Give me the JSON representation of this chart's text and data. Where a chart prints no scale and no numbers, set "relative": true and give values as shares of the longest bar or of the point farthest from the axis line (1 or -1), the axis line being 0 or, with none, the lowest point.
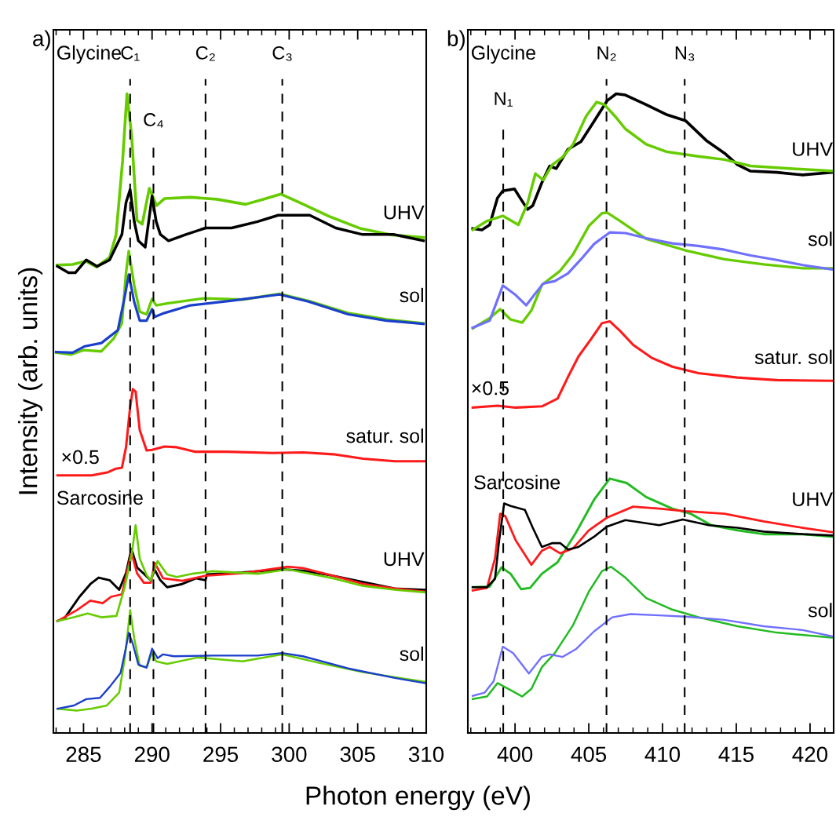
{
  "chart_data": [
    {
      "type": "line",
      "title": "a)",
      "xlabel": "Photon energy (eV)",
      "ylabel": "Intensity (arb. units)",
      "relative": true,
      "xlim": [
        282.8,
        310
      ],
      "xticks": [
        285,
        290,
        295,
        300,
        305,
        310
      ],
      "ref_lines": [
        {
          "axis": "x",
          "value": 288.4,
          "label": "C₁",
          "color": "#000000",
          "line_style": "dashed"
        },
        {
          "axis": "x",
          "value": 290.1,
          "label": "C₄",
          "color": "#000000",
          "line_style": "dashed"
        },
        {
          "axis": "x",
          "value": 293.9,
          "label": "C₂",
          "color": "#000000",
          "line_style": "dashed"
        },
        {
          "axis": "x",
          "value": 299.5,
          "label": "C₃",
          "color": "#000000",
          "line_style": "dashed"
        }
      ],
      "annotations": [
        "Glycine",
        "UHV",
        "sol",
        "satur. sol",
        "×0.5",
        "Sarcosine",
        "UHV",
        "sol"
      ],
      "series": [
        {
          "color": "#66cc00",
          "x": [
            283.07,
            284.2,
            285.17,
            285.94,
            286.9,
            287.37,
            287.85,
            288.17,
            288.51,
            288.9,
            289.28,
            289.8,
            290.33,
            290.9,
            292.81,
            294.72,
            296.82,
            298.16,
            299.4,
            300.64,
            302.94,
            305.23,
            307.52,
            309.81
          ],
          "values": [
            0.732,
            0.733,
            0.738,
            0.729,
            0.744,
            0.779,
            0.895,
            1.0,
            0.934,
            0.802,
            0.796,
            0.852,
            0.825,
            0.836,
            0.838,
            0.835,
            0.827,
            0.835,
            0.843,
            0.831,
            0.808,
            0.789,
            0.779,
            0.775
          ]
        },
        {
          "color": "#000000",
          "x": [
            283.1,
            283.9,
            284.4,
            285.2,
            286.0,
            286.9,
            287.8,
            288.1,
            288.4,
            288.7,
            289.0,
            289.5,
            290.0,
            290.3,
            290.6,
            291.2,
            292.5,
            293.9,
            295.8,
            297.7,
            299.2,
            300.2,
            301.5,
            303.4,
            305.3,
            307.6,
            309.8
          ],
          "values": [
            0.73,
            0.72,
            0.72,
            0.74,
            0.73,
            0.74,
            0.78,
            0.83,
            0.85,
            0.8,
            0.77,
            0.76,
            0.84,
            0.8,
            0.78,
            0.77,
            0.78,
            0.79,
            0.79,
            0.8,
            0.81,
            0.81,
            0.81,
            0.79,
            0.78,
            0.78,
            0.77
          ]
        },
        {
          "color": "#66cc00",
          "x": [
            283.0,
            284.1,
            285.0,
            286.3,
            287.2,
            287.8,
            288.1,
            288.3,
            288.7,
            289.1,
            289.6,
            290.0,
            290.3,
            291.1,
            293.8,
            296.6,
            299.3,
            301.4,
            304.3,
            307.1,
            309.8
          ],
          "values": [
            0.595,
            0.592,
            0.599,
            0.597,
            0.617,
            0.641,
            0.72,
            0.754,
            0.7,
            0.659,
            0.655,
            0.679,
            0.669,
            0.672,
            0.68,
            0.678,
            0.687,
            0.676,
            0.657,
            0.647,
            0.641
          ]
        },
        {
          "color": "#1a3fcc",
          "x": [
            283.0,
            284.2,
            285.1,
            286.3,
            287.5,
            288.0,
            288.3,
            288.7,
            289.1,
            289.6,
            290.0,
            290.2,
            290.9,
            292.8,
            295.7,
            299.3,
            301.4,
            304.3,
            307.1,
            309.8
          ],
          "values": [
            0.596,
            0.595,
            0.605,
            0.61,
            0.63,
            0.682,
            0.717,
            0.674,
            0.645,
            0.645,
            0.663,
            0.651,
            0.657,
            0.669,
            0.676,
            0.686,
            0.675,
            0.655,
            0.645,
            0.64
          ]
        },
        {
          "color": "#ff1a1a",
          "x": [
            283.1,
            285.6,
            286.8,
            287.3,
            287.8,
            288.1,
            288.4,
            288.6,
            288.8,
            289.1,
            289.6,
            290.0,
            290.9,
            291.8,
            293.1,
            295.5,
            298.8,
            301.0,
            303.2,
            305.4,
            307.7,
            309.9
          ],
          "values": [
            0.403,
            0.403,
            0.408,
            0.413,
            0.415,
            0.447,
            0.51,
            0.538,
            0.534,
            0.474,
            0.442,
            0.443,
            0.448,
            0.447,
            0.44,
            0.44,
            0.438,
            0.439,
            0.436,
            0.429,
            0.425,
            0.425
          ]
        },
        {
          "color": "#000000",
          "x": [
            283.1,
            283.6,
            284.7,
            285.5,
            286.1,
            286.9,
            287.6,
            288.1,
            288.5,
            288.9,
            289.3,
            289.9,
            290.2,
            290.6,
            291.1,
            292.2,
            293.2,
            293.9,
            294.0,
            296.6,
            299.5,
            301.0,
            303.2,
            305.4,
            307.7,
            309.9
          ],
          "values": [
            0.175,
            0.179,
            0.213,
            0.233,
            0.243,
            0.239,
            0.224,
            0.25,
            0.288,
            0.259,
            0.251,
            0.239,
            0.255,
            0.239,
            0.228,
            0.233,
            0.242,
            0.239,
            0.248,
            0.251,
            0.256,
            0.254,
            0.246,
            0.236,
            0.226,
            0.224
          ]
        },
        {
          "color": "#ff1a1a",
          "x": [
            283.1,
            284.5,
            285.5,
            286.4,
            287.0,
            287.8,
            288.3,
            288.5,
            288.9,
            289.4,
            289.9,
            290.2,
            290.8,
            292.2,
            293.9,
            296.6,
            299.9,
            301.0,
            303.2,
            305.4,
            307.7,
            309.9
          ],
          "values": [
            0.175,
            0.192,
            0.207,
            0.203,
            0.213,
            0.217,
            0.264,
            0.282,
            0.25,
            0.235,
            0.235,
            0.266,
            0.242,
            0.238,
            0.246,
            0.25,
            0.26,
            0.258,
            0.246,
            0.233,
            0.226,
            0.221
          ]
        },
        {
          "color": "#66cc00",
          "x": [
            283.1,
            284.3,
            285.3,
            286.3,
            287.4,
            288.0,
            288.5,
            288.8,
            289.1,
            289.6,
            289.9,
            290.4,
            291.1,
            291.8,
            292.9,
            294.4,
            297.7,
            299.9,
            303.2,
            305.4,
            307.7,
            309.9
          ],
          "values": [
            0.175,
            0.181,
            0.187,
            0.181,
            0.183,
            0.228,
            0.277,
            0.325,
            0.273,
            0.247,
            0.239,
            0.269,
            0.248,
            0.244,
            0.249,
            0.253,
            0.249,
            0.256,
            0.242,
            0.23,
            0.224,
            0.22
          ]
        },
        {
          "color": "#66cc00",
          "x": [
            283.1,
            284.5,
            285.6,
            286.7,
            287.6,
            288.0,
            288.4,
            288.7,
            289.1,
            289.6,
            290.0,
            290.3,
            291.1,
            293.3,
            296.6,
            299.5,
            302.1,
            305.4,
            309.9
          ],
          "values": [
            0.038,
            0.035,
            0.038,
            0.043,
            0.063,
            0.116,
            0.192,
            0.148,
            0.105,
            0.103,
            0.125,
            0.112,
            0.108,
            0.118,
            0.112,
            0.123,
            0.11,
            0.095,
            0.08
          ]
        },
        {
          "color": "#1a3fcc",
          "x": [
            283.1,
            284.3,
            285.2,
            286.2,
            286.9,
            287.7,
            288.1,
            288.3,
            288.6,
            289.0,
            289.6,
            290.0,
            290.4,
            290.8,
            291.6,
            294.4,
            297.7,
            299.5,
            301.0,
            304.3,
            307.7,
            309.9
          ],
          "values": [
            0.038,
            0.043,
            0.053,
            0.055,
            0.072,
            0.094,
            0.134,
            0.157,
            0.139,
            0.107,
            0.102,
            0.132,
            0.117,
            0.123,
            0.12,
            0.121,
            0.121,
            0.125,
            0.12,
            0.101,
            0.086,
            0.078
          ]
        }
      ]
    },
    {
      "type": "line",
      "title": "b)",
      "relative": true,
      "xlim": [
        396.8,
        421.6
      ],
      "xticks": [
        400,
        405,
        410,
        415,
        420
      ],
      "ref_lines": [
        {
          "axis": "x",
          "value": 399.2,
          "label": "N₁",
          "color": "#000000",
          "line_style": "dashed"
        },
        {
          "axis": "x",
          "value": 406.2,
          "label": "N₂",
          "color": "#000000",
          "line_style": "dashed"
        },
        {
          "axis": "x",
          "value": 411.5,
          "label": "N₃",
          "color": "#000000",
          "line_style": "dashed"
        }
      ],
      "annotations": [
        "Glycine",
        "UHV",
        "sol",
        "satur. sol",
        "×0.5",
        "Sarcosine",
        "UHV",
        "sol"
      ],
      "series": [
        {
          "color": "#000000",
          "x": [
            397.13,
            397.75,
            398.28,
            398.81,
            399.17,
            399.96,
            400.4,
            400.85,
            401.2,
            401.82,
            402.35,
            402.79,
            403.59,
            404.47,
            405.36,
            406.24,
            406.86,
            407.48,
            408.89,
            410.31,
            411.55,
            412.96,
            414.2,
            415.08,
            415.97,
            417.74,
            419.5,
            421.54
          ],
          "values": [
            0.789,
            0.787,
            0.795,
            0.837,
            0.848,
            0.851,
            0.835,
            0.819,
            0.825,
            0.861,
            0.887,
            0.883,
            0.913,
            0.925,
            0.957,
            0.989,
            1.0,
            0.998,
            0.983,
            0.967,
            0.958,
            0.927,
            0.907,
            0.889,
            0.879,
            0.877,
            0.873,
            0.877
          ]
        },
        {
          "color": "#66cc00",
          "x": [
            397.13,
            398.1,
            399.17,
            400.23,
            400.85,
            401.38,
            401.91,
            402.53,
            403.23,
            403.94,
            404.82,
            405.53,
            406.06,
            406.77,
            407.48,
            408.89,
            410.31,
            412.43,
            414.2,
            415.97,
            418.62,
            421.54
          ],
          "values": [
            0.787,
            0.801,
            0.809,
            0.795,
            0.829,
            0.875,
            0.865,
            0.889,
            0.901,
            0.921,
            0.965,
            0.987,
            0.983,
            0.965,
            0.945,
            0.921,
            0.909,
            0.902,
            0.897,
            0.887,
            0.883,
            0.879
          ]
        },
        {
          "color": "#66cc00",
          "x": [
            397.13,
            398.28,
            398.99,
            399.69,
            400.49,
            401.11,
            401.82,
            403.06,
            403.94,
            405.0,
            405.89,
            406.24,
            407.12,
            408.89,
            411.55,
            414.2,
            416.85,
            419.5,
            421.54
          ],
          "values": [
            0.633,
            0.649,
            0.663,
            0.647,
            0.642,
            0.661,
            0.701,
            0.723,
            0.749,
            0.793,
            0.813,
            0.814,
            0.801,
            0.773,
            0.755,
            0.741,
            0.733,
            0.727,
            0.727
          ]
        },
        {
          "color": "#7070ff",
          "x": [
            397.13,
            398.28,
            399.17,
            400.05,
            400.76,
            401.29,
            401.91,
            402.7,
            403.59,
            404.47,
            405.36,
            406.42,
            407.48,
            408.89,
            410.66,
            412.43,
            414.2,
            415.97,
            417.74,
            419.5,
            421.54
          ],
          "values": [
            0.634,
            0.645,
            0.7,
            0.685,
            0.669,
            0.685,
            0.703,
            0.707,
            0.719,
            0.741,
            0.765,
            0.783,
            0.782,
            0.774,
            0.766,
            0.762,
            0.756,
            0.747,
            0.74,
            0.732,
            0.725
          ]
        },
        {
          "color": "#ff1a1a",
          "x": [
            397.13,
            398.81,
            400.05,
            401.82,
            402.88,
            403.59,
            404.3,
            405.18,
            405.89,
            406.42,
            407.12,
            408.01,
            409.25,
            410.66,
            412.43,
            415.08,
            417.74,
            421.54
          ],
          "values": [
            0.509,
            0.512,
            0.509,
            0.511,
            0.523,
            0.557,
            0.589,
            0.617,
            0.641,
            0.644,
            0.629,
            0.607,
            0.587,
            0.573,
            0.563,
            0.556,
            0.552,
            0.551
          ]
        },
        {
          "color": "#22bb22",
          "x": [
            397.13,
            398.28,
            399.08,
            399.7,
            400.41,
            401.02,
            401.82,
            402.88,
            404.12,
            405.36,
            406.42,
            407.57,
            408.89,
            410.66,
            411.9,
            413.31,
            415.08,
            416.85,
            419.5,
            421.54
          ],
          "values": [
            0.228,
            0.229,
            0.259,
            0.249,
            0.225,
            0.227,
            0.249,
            0.267,
            0.313,
            0.365,
            0.398,
            0.391,
            0.369,
            0.351,
            0.343,
            0.325,
            0.317,
            0.311,
            0.311,
            0.307
          ]
        },
        {
          "color": "#ff1a1a",
          "x": [
            397.13,
            398.1,
            398.64,
            398.99,
            399.34,
            400.05,
            401.11,
            401.82,
            402.35,
            403.06,
            403.94,
            405.0,
            406.24,
            408.01,
            409.78,
            411.55,
            414.2,
            416.85,
            419.5,
            421.54
          ],
          "values": [
            0.223,
            0.227,
            0.273,
            0.343,
            0.339,
            0.301,
            0.263,
            0.285,
            0.291,
            0.281,
            0.289,
            0.317,
            0.337,
            0.354,
            0.351,
            0.347,
            0.343,
            0.331,
            0.321,
            0.314
          ]
        },
        {
          "color": "#000000",
          "x": [
            397.13,
            398.1,
            398.64,
            398.9,
            399.26,
            399.7,
            400.67,
            401.2,
            401.82,
            402.53,
            403.06,
            403.59,
            404.3,
            405.36,
            406.24,
            407.48,
            409.78,
            411.37,
            413.14,
            415.08,
            416.85,
            419.5,
            421.54
          ],
          "values": [
            0.228,
            0.228,
            0.241,
            0.297,
            0.359,
            0.355,
            0.349,
            0.321,
            0.291,
            0.297,
            0.297,
            0.287,
            0.291,
            0.307,
            0.323,
            0.333,
            0.325,
            0.334,
            0.325,
            0.321,
            0.315,
            0.311,
            0.309
          ]
        },
        {
          "color": "#22bb22",
          "x": [
            397.13,
            398.1,
            398.81,
            399.87,
            400.49,
            401.11,
            401.82,
            402.7,
            403.94,
            405.0,
            405.89,
            406.51,
            407.48,
            408.89,
            410.66,
            412.43,
            415.08,
            417.74,
            421.54
          ],
          "values": [
            0.053,
            0.057,
            0.078,
            0.065,
            0.057,
            0.069,
            0.103,
            0.125,
            0.169,
            0.221,
            0.253,
            0.26,
            0.243,
            0.211,
            0.193,
            0.181,
            0.167,
            0.157,
            0.149
          ]
        },
        {
          "color": "#7070ff",
          "x": [
            397.13,
            397.93,
            398.55,
            399.17,
            399.87,
            400.94,
            401.82,
            402.35,
            403.23,
            404.12,
            405.36,
            406.59,
            407.83,
            409.78,
            411.55,
            414.2,
            416.85,
            419.5,
            421.54
          ],
          "values": [
            0.058,
            0.063,
            0.081,
            0.135,
            0.125,
            0.093,
            0.119,
            0.123,
            0.119,
            0.131,
            0.159,
            0.181,
            0.186,
            0.184,
            0.182,
            0.177,
            0.167,
            0.161,
            0.151
          ]
        }
      ]
    }
  ]
}
